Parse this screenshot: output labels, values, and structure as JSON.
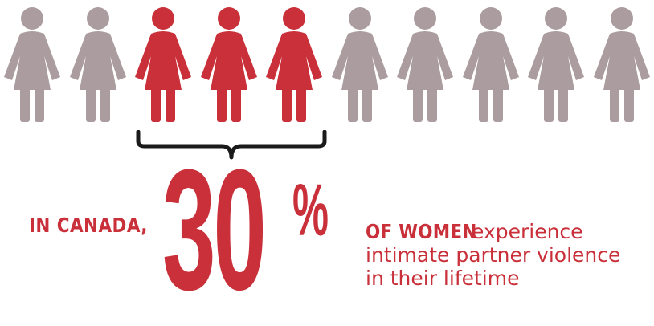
{
  "colors": {
    "highlight": "#c9303a",
    "neutral": "#ab9c9f",
    "brace": "#1a1a1a"
  },
  "figures": {
    "total": 10,
    "highlighted": 3,
    "icon": "woman-icon"
  },
  "statement": {
    "lead": "IN CANADA,",
    "number": "30",
    "percent_sign": "%",
    "subject": "OF WOMEN",
    "line1": "experience",
    "line2": "intimate partner violence",
    "line3": "in their lifetime"
  }
}
